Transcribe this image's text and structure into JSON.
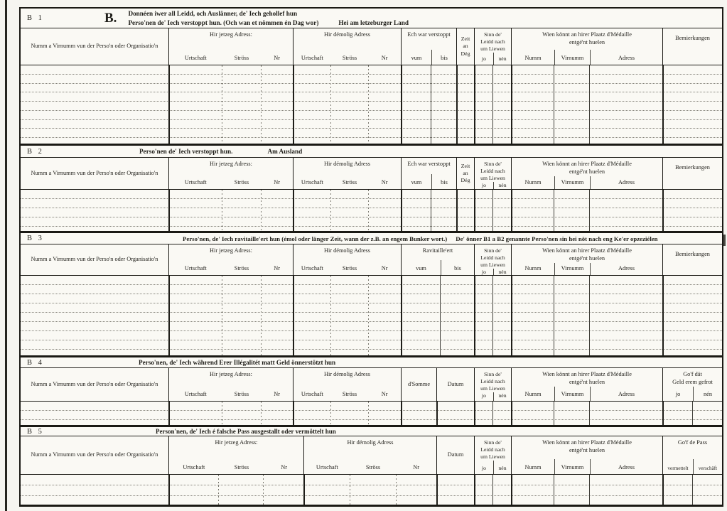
{
  "page": {
    "paper_color": "#faf9f4",
    "ink_color": "#1a1914"
  },
  "labels": {
    "name_col": "Numm a Virnumm vun der Perso'n oder Organisatio'n",
    "jetzeg_adress": "Hir jetzeg Adress:",
    "demolig_adress": "Hir démolig Adress",
    "urtschaft": "Urtschaft",
    "stross": "Ströss",
    "nr": "Nr",
    "verstoppt": "Ech war verstoppt",
    "ravitailleert": "Ravitaille'ert",
    "vum": "vum",
    "bis": "bis",
    "zeit": "Zeit\nan\nDég",
    "sinn": "Sinn de'\nLeidd nach\num Liewen",
    "jo": "jo",
    "nen": "nén",
    "wien": "Wien könnt an hirer Plaatz d'Médaille\nentgé'nt huelen",
    "numm": "Numm",
    "virnumm": "Virnumm",
    "adress": "Adress",
    "bemierkungen": "Bemierkungen",
    "somme": "d'Somme",
    "datum": "Datum",
    "geld": "Go'f dät\nGeld erem gefrot",
    "pass": "Go'f de Pass",
    "vermettelt": "vermettelt",
    "verschaft": "verschäft"
  },
  "sections": {
    "b1": {
      "id": "B 1",
      "big_letter": "B.",
      "title_line1": "Donnéen iwer all Leidd, och Auslänner, de' Iech gehollef hun",
      "title_line2": "Perso'nen de' Iech verstoppt hun. (Och wan et nömmen én Dag wor)",
      "note": "Hei am letzeburger Land",
      "blank_rows": 8
    },
    "b2": {
      "id": "B 2",
      "title": "Perso'nen de' Iech verstoppt hun.",
      "note": "Am Ausland",
      "blank_rows": 4
    },
    "b3": {
      "id": "B 3",
      "title": "Perso'nen, de' Iech ravitaille'ert hun (émol oder länger Zeit, wann der z.B. an engem Bunker wort.)",
      "note": "De' önner B1 a B2 genannte Perso'nen sin hei nöt nach eng Ke'er opzeziélen",
      "blank_rows": 8
    },
    "b4": {
      "id": "B 4",
      "title": "Perso'nen, de' Iech während Erer Illégalitét matt Geld önnerstötzt hun",
      "blank_rows": 2
    },
    "b5": {
      "id": "B 5",
      "title": "Person'nen, de' Iech é falsche Pass ausgestallt oder vermöttelt hun",
      "blank_rows": 2
    }
  }
}
